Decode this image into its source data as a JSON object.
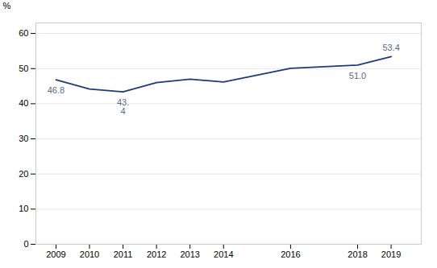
{
  "chart_data": {
    "type": "line",
    "x": [
      2009,
      2010,
      2011,
      2012,
      2013,
      2014,
      2016,
      2018,
      2019
    ],
    "values": [
      46.8,
      44.2,
      43.4,
      46.0,
      47.0,
      46.2,
      50.1,
      51.0,
      53.4
    ],
    "color": "#1f3a7a",
    "ylabel": "%",
    "xlim": [
      2008.4,
      2019.9
    ],
    "xticks": [
      2009,
      2010,
      2011,
      2012,
      2013,
      2014,
      2016,
      2018,
      2019
    ],
    "ylim": [
      0,
      63
    ],
    "yticks": [
      0,
      10,
      20,
      30,
      40,
      50,
      60
    ],
    "grid": true,
    "annotations": [
      {
        "x": 2009,
        "y": 46.8,
        "text": "46.8"
      },
      {
        "x": 2011,
        "y": 43.4,
        "text": "43.\n4"
      },
      {
        "x": 2018,
        "y": 51.0,
        "text": "51.0"
      },
      {
        "x": 2019,
        "y": 53.4,
        "text": "53.4"
      }
    ]
  }
}
